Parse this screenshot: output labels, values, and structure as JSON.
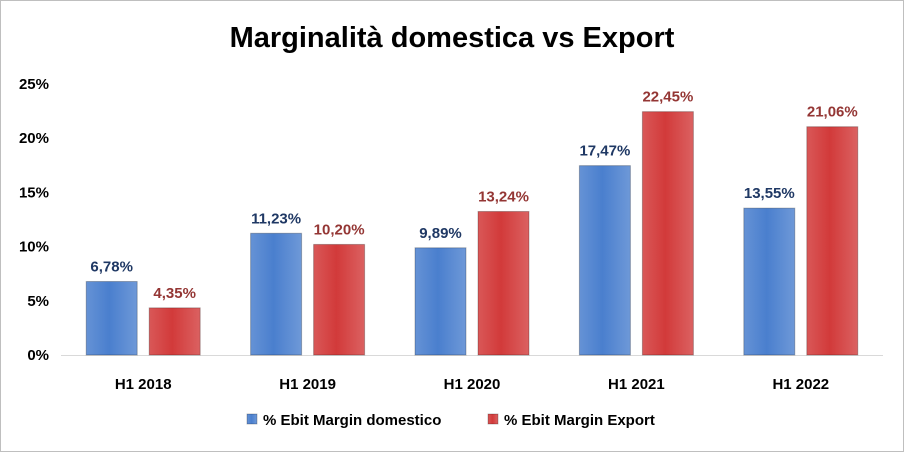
{
  "chart_data": {
    "type": "bar",
    "title": "Marginalità domestica vs Export",
    "categories": [
      "H1 2018",
      "H1 2019",
      "H1 2020",
      "H1 2021",
      "H1 2022"
    ],
    "series": [
      {
        "name": "% Ebit Margin domestico",
        "values": [
          6.78,
          11.23,
          9.89,
          17.47,
          13.55
        ],
        "labels": [
          "6,78%",
          "11,23%",
          "9,89%",
          "17,47%",
          "13,55%"
        ],
        "color": "#4a7fce",
        "label_color": "#1f3864"
      },
      {
        "name": "% Ebit Margin Export",
        "values": [
          4.35,
          10.2,
          13.24,
          22.45,
          21.06
        ],
        "labels": [
          "4,35%",
          "10,20%",
          "13,24%",
          "22,45%",
          "21,06%"
        ],
        "color": "#d23a3a",
        "label_color": "#943634"
      }
    ],
    "y_ticks": [
      "0%",
      "5%",
      "10%",
      "15%",
      "20%",
      "25%"
    ],
    "y_tick_values": [
      0,
      5,
      10,
      15,
      20,
      25
    ],
    "ylim": [
      0,
      25
    ],
    "xlabel": "",
    "ylabel": "",
    "grid": false,
    "legend_position": "bottom"
  }
}
